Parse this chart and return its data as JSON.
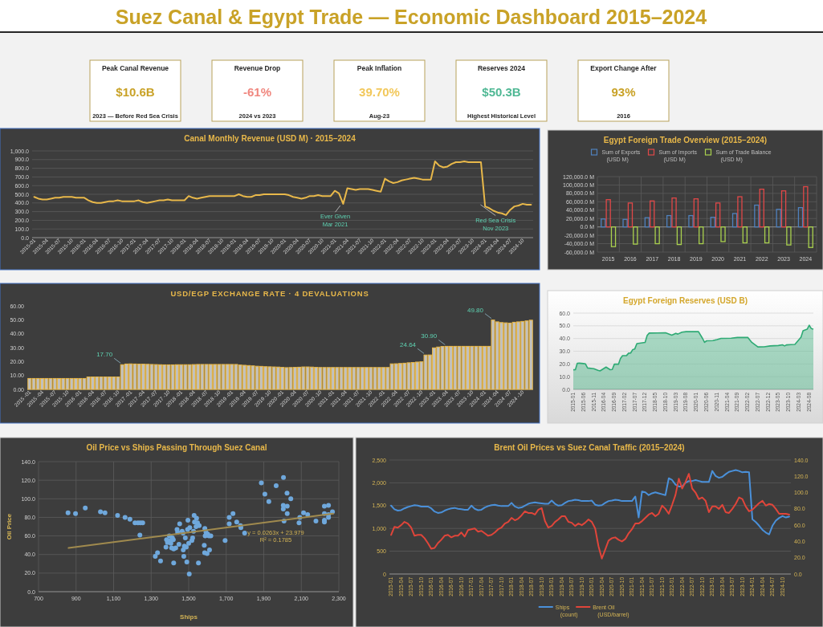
{
  "chart_data": [
    {
      "type": "other",
      "title": "Suez Canal & Egypt Trade — Economic Dashboard 2015–2024",
      "annotations": [
        "Peak Canal Revenue",
        "$10.6B",
        "2023 — Before Red Sea Crisis",
        "Revenue Drop",
        "-61%",
        "2024 vs 2023",
        "Peak Inflation",
        "39.70%",
        "Aug-23",
        "Reserves 2024",
        "$50.3B",
        "Highest Historical Level",
        "Export Change After",
        "93%",
        "2016"
      ],
      "colors": [
        "#c9a227",
        "#f0877f",
        "#f2c85b",
        "#4fb894",
        "#c9a227"
      ]
    },
    {
      "type": "line",
      "title": "Canal Monthly Revenue (USD M) · 2015–2024",
      "categories": [
        "2015-01",
        null,
        null,
        "2015-04",
        null,
        null,
        "2015-07",
        null,
        null,
        "2015-10",
        null,
        null,
        "2016-01",
        null,
        null,
        "2016-04",
        null,
        null,
        "2016-07",
        null,
        null,
        "2016-10",
        null,
        null,
        "2017-01",
        null,
        null,
        "2017-04",
        null,
        null,
        "2017-07",
        null,
        null,
        "2017-10",
        null,
        null,
        "2018-01",
        null,
        null,
        "2018-04",
        null,
        null,
        "2018-07",
        null,
        null,
        "2018-10",
        null,
        null,
        "2019-01",
        null,
        null,
        "2019-04",
        null,
        null,
        "2019-07",
        null,
        null,
        "2019-10",
        null,
        null,
        "2020-01",
        null,
        null,
        "2020-04",
        null,
        null,
        "2020-07",
        null,
        null,
        "2020-10",
        null,
        null,
        "2021-01",
        null,
        null,
        "2021-04",
        null,
        null,
        "2021-07",
        null,
        null,
        "2021-10",
        null,
        null,
        "2022-01",
        null,
        null,
        "2022-04",
        null,
        null,
        "2022-07",
        null,
        null,
        "2022-10",
        null,
        null,
        "2023-01",
        null,
        null,
        "2023-04",
        null,
        null,
        "2023-07",
        null,
        null,
        "2023-10",
        null,
        null,
        "2024-01",
        null,
        null,
        "2024-04",
        null,
        null,
        "2024-07",
        null,
        null,
        "2024-10",
        null,
        null
      ],
      "series": [
        {
          "color": "#e8b84a",
          "values": [
            470,
            450,
            440,
            440,
            450,
            460,
            460,
            470,
            470,
            470,
            460,
            460,
            460,
            430,
            410,
            400,
            400,
            410,
            420,
            420,
            430,
            420,
            420,
            420,
            420,
            430,
            410,
            400,
            410,
            420,
            430,
            430,
            440,
            430,
            430,
            430,
            430,
            480,
            460,
            450,
            460,
            470,
            480,
            480,
            480,
            480,
            480,
            480,
            480,
            500,
            480,
            470,
            470,
            490,
            490,
            500,
            500,
            500,
            500,
            500,
            500,
            490,
            470,
            460,
            450,
            460,
            480,
            480,
            490,
            480,
            480,
            480,
            540,
            510,
            390,
            570,
            560,
            550,
            560,
            560,
            560,
            550,
            540,
            530,
            680,
            650,
            630,
            640,
            660,
            670,
            680,
            690,
            680,
            670,
            670,
            670,
            880,
            830,
            810,
            820,
            850,
            870,
            870,
            880,
            870,
            870,
            870,
            870,
            360,
            340,
            310,
            290,
            280,
            260,
            320,
            360,
            370,
            390,
            380,
            380
          ]
        }
      ],
      "ylim": [
        0,
        1000
      ],
      "yticks": [
        {
          "value": 0,
          "label": "0.0"
        },
        {
          "value": 100,
          "label": "100.0"
        },
        {
          "value": 200,
          "label": "200.0"
        },
        {
          "value": 300,
          "label": "300.0"
        },
        {
          "value": 400,
          "label": "400.0"
        },
        {
          "value": 500,
          "label": "500.0"
        },
        {
          "value": 600,
          "label": "600.0"
        },
        {
          "value": 700,
          "label": "700.0"
        },
        {
          "value": 800,
          "label": "800.0"
        },
        {
          "value": 900,
          "label": "900.0"
        },
        {
          "value": 1000,
          "label": "1,000.0"
        }
      ],
      "grid": "y",
      "annotations": [
        "Ever Given\nMar 2021",
        "Red Sea Crisis\nNov 2023"
      ]
    },
    {
      "type": "bar",
      "title": "Egypt Foreign Trade Overview (2015–2024)",
      "categories": [
        "2015",
        "2016",
        "2017",
        "2018",
        "2019",
        "2020",
        "2021",
        "2022",
        "2023",
        "2024"
      ],
      "series": [
        {
          "name": "Sum of Exports (USD M)",
          "color": "#4f81bd",
          "values": [
            19000,
            18000,
            22000,
            27000,
            27000,
            23000,
            32000,
            52000,
            42000,
            46000
          ]
        },
        {
          "name": "Sum of Imports (USD M)",
          "color": "#e04848",
          "values": [
            65000,
            57000,
            62000,
            69000,
            67000,
            57000,
            72000,
            90000,
            86000,
            96000
          ]
        },
        {
          "name": "Sum of Trade Balance (USD M)",
          "color": "#a9d04e",
          "values": [
            -47000,
            -41000,
            -40000,
            -42000,
            -40000,
            -35000,
            -38000,
            -38000,
            -43000,
            -49000
          ]
        }
      ],
      "ylim": [
        -60000,
        120000
      ],
      "yticks": [
        {
          "value": -60000,
          "label": "-60,000.0 M"
        },
        {
          "value": -40000,
          "label": "-40,000.0 M"
        },
        {
          "value": -20000,
          "label": "-20,000.0 M"
        },
        {
          "value": 0,
          "label": "0.0 M"
        },
        {
          "value": 20000,
          "label": "20,000.0 M"
        },
        {
          "value": 40000,
          "label": "40,000.0 M"
        },
        {
          "value": 60000,
          "label": "60,000.0 M"
        },
        {
          "value": 80000,
          "label": "80,000.0 M"
        },
        {
          "value": 100000,
          "label": "100,000.0 M"
        },
        {
          "value": 120000,
          "label": "120,000.0 M"
        }
      ],
      "grid": true,
      "legend": "top"
    },
    {
      "type": "bar",
      "title": "USD/EGP EXCHANGE RATE · 4 DEVALUATIONS",
      "categories": [
        "2015 -01",
        null,
        null,
        "2015 -04",
        null,
        null,
        "2015 -07",
        null,
        null,
        "2015 -10",
        null,
        null,
        "2016 -01",
        null,
        null,
        "2016 -04",
        null,
        null,
        "2016 -07",
        null,
        null,
        "2016 -10",
        null,
        null,
        "2017 -01",
        null,
        null,
        "2017 -04",
        null,
        null,
        "2017 -07",
        null,
        null,
        "2017 -10",
        null,
        null,
        "2018 -01",
        null,
        null,
        "2018 -04",
        null,
        null,
        "2018 -07",
        null,
        null,
        "2018 -10",
        null,
        null,
        "2019 -01",
        null,
        null,
        "2019 -04",
        null,
        null,
        "2019 -07",
        null,
        null,
        "2019 -10",
        null,
        null,
        "2020 -01",
        null,
        null,
        "2020 -04",
        null,
        null,
        "2020 -07",
        null,
        null,
        "2020 -10",
        null,
        null,
        "2021 -01",
        null,
        null,
        "2021 -04",
        null,
        null,
        "2021 -07",
        null,
        null,
        "2021 -10",
        null,
        null,
        "2022 -01",
        null,
        null,
        "2022 -04",
        null,
        null,
        "2022 -07",
        null,
        null,
        "2022 -10",
        null,
        null,
        "2023 -01",
        null,
        null,
        "2023 -04",
        null,
        null,
        "2023 -07",
        null,
        null,
        "2023 -10",
        null,
        null,
        "2024 -01",
        null,
        null,
        "2024 -04",
        null,
        null,
        "2024 -07",
        null,
        null,
        "2024 -10",
        null,
        null
      ],
      "series": [
        {
          "color": "#e8b84a",
          "values": [
            7.8,
            7.8,
            7.8,
            7.8,
            7.8,
            7.8,
            7.8,
            7.8,
            7.8,
            7.8,
            7.8,
            7.8,
            7.8,
            7.8,
            8.9,
            8.9,
            8.9,
            8.9,
            8.9,
            8.9,
            8.9,
            8.9,
            17.7,
            18.2,
            18.3,
            18.2,
            18.1,
            18.1,
            18.0,
            17.9,
            17.8,
            17.7,
            17.6,
            17.6,
            17.6,
            17.7,
            17.7,
            17.7,
            17.7,
            17.8,
            17.9,
            17.9,
            17.9,
            17.9,
            17.9,
            17.9,
            17.9,
            17.9,
            17.9,
            17.9,
            17.5,
            17.3,
            17.1,
            16.9,
            16.6,
            16.5,
            16.3,
            16.2,
            16.1,
            16.0,
            15.8,
            15.6,
            15.7,
            15.8,
            15.9,
            16.1,
            16.1,
            16.0,
            15.8,
            15.7,
            15.7,
            15.7,
            15.7,
            15.7,
            15.7,
            15.7,
            15.7,
            15.7,
            15.7,
            15.7,
            15.7,
            15.7,
            15.7,
            15.7,
            15.7,
            15.7,
            18.3,
            18.4,
            18.6,
            18.8,
            19.1,
            19.3,
            19.6,
            19.8,
            24.64,
            24.7,
            29.8,
            30.4,
            30.8,
            30.9,
            30.9,
            30.9,
            30.9,
            30.9,
            30.9,
            30.9,
            30.9,
            30.9,
            30.9,
            30.9,
            49.8,
            48.5,
            48.0,
            47.8,
            47.6,
            48.2,
            48.5,
            48.8,
            49.2,
            49.7
          ],
          "value_labels": [
            null,
            null,
            null,
            null,
            null,
            null,
            null,
            null,
            null,
            null,
            null,
            null,
            null,
            null,
            null,
            null,
            null,
            null,
            null,
            null,
            null,
            null,
            "17.70",
            null,
            null,
            null,
            null,
            null,
            null,
            null,
            null,
            null,
            null,
            null,
            null,
            null,
            null,
            null,
            null,
            null,
            null,
            null,
            null,
            null,
            null,
            null,
            null,
            null,
            null,
            null,
            null,
            null,
            null,
            null,
            null,
            null,
            null,
            null,
            null,
            null,
            null,
            null,
            null,
            null,
            null,
            null,
            null,
            null,
            null,
            null,
            null,
            null,
            null,
            null,
            null,
            null,
            null,
            null,
            null,
            null,
            null,
            null,
            null,
            null,
            null,
            null,
            null,
            null,
            null,
            null,
            null,
            null,
            null,
            null,
            "24.64",
            null,
            null,
            null,
            null,
            "30.90",
            null,
            null,
            null,
            null,
            null,
            null,
            null,
            null,
            null,
            null,
            "49.80",
            null,
            null,
            null,
            null,
            null,
            null,
            null,
            null,
            null
          ]
        }
      ],
      "ylim": [
        0,
        60
      ],
      "yticks": [
        {
          "value": 0,
          "label": "0.00"
        },
        {
          "value": 10,
          "label": "10.00"
        },
        {
          "value": 20,
          "label": "20.00"
        },
        {
          "value": 30,
          "label": "30.00"
        },
        {
          "value": 40,
          "label": "40.00"
        },
        {
          "value": 50,
          "label": "50.00"
        },
        {
          "value": 60,
          "label": "60.00"
        }
      ]
    },
    {
      "type": "area",
      "title": "Egypt Foreign Reserves (USD B)",
      "x": [
        "2015-01",
        "2015-02",
        "2015-03",
        "2015-04",
        "2015-06",
        "2015-07",
        "2015-08",
        "2015-11",
        "2016-01",
        "2016-02",
        "2016-03",
        "2016-05",
        "2016-07",
        "2016-08",
        "2016-09",
        "2016-11",
        "2016-12",
        "2017-01",
        "2017-03",
        "2017-04",
        "2017-05",
        "2017-06",
        "2017-07",
        "2017-08",
        "2017-10",
        "2017-12",
        "2018-01",
        "2018-02",
        "2018-06",
        "2018-10",
        "2019-01",
        "2019-03",
        "2019-04",
        "2019-06",
        "2019-08",
        "2020-02",
        "2020-04",
        "2020-05",
        "2020-06",
        "2020-09",
        "2020-11",
        "2021-01",
        "2021-06",
        "2021-09",
        "2022-02",
        "2022-04",
        "2022-07",
        "2022-10",
        "2023-01",
        "2023-05",
        "2023-07",
        "2023-08",
        "2023-09",
        "2023-11",
        "2024-01",
        "2024-04",
        "2024-05",
        "2024-06",
        "2024-07",
        "2024-08",
        "2024-09",
        "2024-10"
      ],
      "series": [
        {
          "color": "#2eaa74",
          "values": [
            15.4,
            15.5,
            20.5,
            20.6,
            20.3,
            20.0,
            16.8,
            16.3,
            15.0,
            14.5,
            15.5,
            17.5,
            15.5,
            15.6,
            19.8,
            19.8,
            24.3,
            26.5,
            26.6,
            28.5,
            28.6,
            31.3,
            31.8,
            36.0,
            36.5,
            37.0,
            42.5,
            44.3,
            44.4,
            44.5,
            42.6,
            44.1,
            43.5,
            45.0,
            45.4,
            45.4,
            40.1,
            37.0,
            38.2,
            38.4,
            39.2,
            40.1,
            40.3,
            40.8,
            40.9,
            37.0,
            33.4,
            33.5,
            34.2,
            34.5,
            35.0,
            34.2,
            35.0,
            35.2,
            35.4,
            41.1,
            46.1,
            46.8,
            47.3,
            50.5,
            47.8,
            47.4
          ]
        }
      ],
      "xlim": [
        "2015-01",
        "2024-10"
      ],
      "xticks": [
        "2015-01",
        "2015-06",
        "2015-11",
        "2016-04",
        "2016-09",
        "2017-02",
        "2017-07",
        "2017-12",
        "2018-05",
        "2018-10",
        "2019-03",
        "2019-08",
        "2020-01",
        "2020-06",
        "2020-11",
        "2021-04",
        "2021-09",
        "2022-02",
        "2022-07",
        "2022-12",
        "2023-05",
        "2023-10",
        "2024-03",
        "2024-08"
      ],
      "ylim": [
        0,
        60
      ],
      "yticks": [
        {
          "value": 0,
          "label": "0.0"
        },
        {
          "value": 10,
          "label": "10.0"
        },
        {
          "value": 20,
          "label": "20.0"
        },
        {
          "value": 30,
          "label": "30.0"
        },
        {
          "value": 40,
          "label": "40.0"
        },
        {
          "value": 50,
          "label": "50.0"
        },
        {
          "value": 60,
          "label": "60.0"
        }
      ],
      "grid": "y"
    },
    {
      "type": "scatter",
      "title": "Oil Price vs Ships Passing Through Suez Canal",
      "xlabel": "Ships",
      "ylabel": "Oil Price",
      "series": [
        {
          "type": "scatter",
          "marker": "circle",
          "color": "#6fa8dc",
          "x": [
            857,
            897,
            949,
            1030,
            1054,
            1121,
            1161,
            1187,
            1214,
            1230,
            1243,
            1255,
            1240,
            1322,
            1334,
            1350,
            1379,
            1382,
            1387,
            1397,
            1402,
            1405,
            1409,
            1413,
            1418,
            1420,
            1420,
            1431,
            1438,
            1441,
            1448,
            1452,
            1465,
            1470,
            1471,
            1474,
            1477,
            1482,
            1487,
            1490,
            1494,
            1496,
            1500,
            1503,
            1506,
            1517,
            1521,
            1526,
            1529,
            1531,
            1539,
            1542,
            1547,
            1552,
            1556,
            1583,
            1585,
            1586,
            1588,
            1592,
            1598,
            1601,
            1608,
            1611,
            1618,
            1694,
            1716,
            1716,
            1736,
            1756,
            1776,
            1778,
            1798,
            1887,
            1906,
            1927,
            1966,
            2005,
            2004,
            2004,
            2008,
            2024,
            2025,
            2025,
            2044,
            2088,
            2092,
            2112,
            2134,
            2178,
            2223,
            2223,
            2223,
            2223,
            2245,
            2245,
            2245,
            2266
          ],
          "values": [
            85,
            84,
            90,
            86,
            85,
            82,
            80,
            78,
            74,
            74,
            74,
            74,
            61,
            38,
            42,
            33,
            48,
            56,
            53,
            60,
            55,
            52,
            47,
            58,
            56,
            46,
            31,
            47,
            67,
            64,
            51,
            73,
            65,
            63,
            45,
            38,
            49,
            58,
            48,
            32,
            67,
            77,
            52,
            19,
            69,
            55,
            58,
            65,
            82,
            75,
            70,
            79,
            74,
            31,
            71,
            50,
            42,
            68,
            60,
            64,
            41,
            62,
            60,
            45,
            60,
            55,
            80,
            73,
            84,
            75,
            71,
            69,
            63,
            117,
            105,
            97,
            114,
            123,
            93,
            89,
            76,
            106,
            92,
            84,
            100,
            74,
            80,
            85,
            83,
            76,
            92,
            84,
            77,
            75,
            93,
            83,
            80,
            86
          ]
        },
        {
          "type": "line",
          "color": "#a08a4e",
          "x": [
            860,
            2270
          ],
          "values": [
            47,
            84
          ]
        }
      ],
      "xlim": [
        700,
        2300
      ],
      "xticks": [
        700,
        900,
        {
          "value": 1100,
          "label": "1,100"
        },
        {
          "value": 1300,
          "label": "1,300"
        },
        {
          "value": 1500,
          "label": "1,500"
        },
        {
          "value": 1700,
          "label": "1,700"
        },
        {
          "value": 1900,
          "label": "1,900"
        },
        {
          "value": 2100,
          "label": "2,100"
        },
        {
          "value": 2300,
          "label": "2,300"
        }
      ],
      "ylim": [
        0,
        140
      ],
      "yticks": [
        {
          "value": 0,
          "label": "0.0"
        },
        {
          "value": 20,
          "label": "20.0"
        },
        {
          "value": 40,
          "label": "40.0"
        },
        {
          "value": 60,
          "label": "60.0"
        },
        {
          "value": 80,
          "label": "80.0"
        },
        {
          "value": 100,
          "label": "100.0"
        },
        {
          "value": 120,
          "label": "120.0"
        },
        {
          "value": 140,
          "label": "140.0"
        }
      ],
      "grid": true,
      "annotations": [
        "y = 0.0263x + 23.979",
        "R² = 0.1785"
      ]
    },
    {
      "type": "line",
      "title": "Brent Oil Prices vs Suez Canal Traffic (2015–2024)",
      "categories": [
        "2015-01",
        null,
        null,
        "2015-04",
        null,
        null,
        "2015-07",
        null,
        null,
        "2015-10",
        null,
        null,
        "2016-01",
        null,
        null,
        "2016-04",
        null,
        null,
        "2016-07",
        null,
        null,
        "2016-10",
        null,
        null,
        "2017-01",
        null,
        null,
        "2017-04",
        null,
        null,
        "2017-07",
        null,
        null,
        "2017-10",
        null,
        null,
        "2018-01",
        null,
        null,
        "2018-04",
        null,
        null,
        "2018-07",
        null,
        null,
        "2018-10",
        null,
        null,
        "2019-01",
        null,
        null,
        "2019-04",
        null,
        null,
        "2019-07",
        null,
        null,
        "2019-10",
        null,
        null,
        "2020-01",
        null,
        null,
        "2020-04",
        null,
        null,
        "2020-07",
        null,
        null,
        "2020-10",
        null,
        null,
        "2021-01",
        null,
        null,
        "2021-04",
        null,
        null,
        "2021-07",
        null,
        null,
        "2021-10",
        null,
        null,
        "2022-01",
        null,
        null,
        "2022-04",
        null,
        null,
        "2022-07",
        null,
        null,
        "2022-10",
        null,
        null,
        "2023-01",
        null,
        null,
        "2023-04",
        null,
        null,
        "2023-07",
        null,
        null,
        "2023-10",
        null,
        null,
        "2024-01",
        null,
        null,
        "2024-04",
        null,
        null,
        "2024-07",
        null,
        null,
        "2024-10",
        null,
        null
      ],
      "series": [
        {
          "name": "Ships (count)",
          "color": "#4a90d9",
          "values": [
            1500,
            1420,
            1390,
            1400,
            1440,
            1470,
            1490,
            1510,
            1500,
            1480,
            1480,
            1480,
            1440,
            1370,
            1340,
            1350,
            1390,
            1420,
            1440,
            1450,
            1430,
            1420,
            1410,
            1410,
            1500,
            1430,
            1400,
            1410,
            1460,
            1490,
            1510,
            1520,
            1500,
            1490,
            1490,
            1490,
            1560,
            1480,
            1450,
            1460,
            1500,
            1540,
            1560,
            1570,
            1560,
            1550,
            1540,
            1540,
            1610,
            1540,
            1500,
            1510,
            1560,
            1600,
            1610,
            1630,
            1620,
            1600,
            1600,
            1600,
            1610,
            1520,
            1500,
            1510,
            1560,
            1600,
            1610,
            1630,
            1620,
            1600,
            1600,
            1600,
            1600,
            1700,
            1240,
            1810,
            1790,
            1730,
            1770,
            1790,
            1770,
            1750,
            1730,
            2100,
            2060,
            1960,
            1920,
            1920,
            2000,
            2040,
            2040,
            2060,
            2040,
            2020,
            2020,
            2020,
            2260,
            2150,
            2110,
            2130,
            2190,
            2240,
            2260,
            2280,
            2260,
            2230,
            2240,
            2230,
            1200,
            1140,
            1060,
            970,
            910,
            870,
            1060,
            1170,
            1230,
            1270,
            1240,
            1260
          ]
        },
        {
          "name": "Brent Oil (USD/barrel)",
          "color": "#e0453a",
          "axis": "y2",
          "values": [
            48,
            58,
            57,
            60,
            64,
            62,
            57,
            47,
            48,
            48,
            44,
            38,
            31,
            32,
            38,
            42,
            47,
            48,
            45,
            47,
            47,
            51,
            46,
            54,
            55,
            56,
            52,
            53,
            50,
            47,
            48,
            51,
            55,
            57,
            62,
            64,
            69,
            66,
            68,
            72,
            77,
            75,
            75,
            73,
            79,
            81,
            65,
            57,
            59,
            64,
            67,
            71,
            71,
            64,
            63,
            59,
            62,
            60,
            63,
            67,
            64,
            56,
            34,
            19,
            30,
            41,
            44,
            45,
            42,
            40,
            43,
            50,
            55,
            62,
            62,
            65,
            69,
            73,
            75,
            71,
            74,
            84,
            80,
            74,
            85,
            97,
            117,
            105,
            113,
            123,
            105,
            100,
            92,
            94,
            90,
            76,
            83,
            83,
            80,
            85,
            76,
            75,
            80,
            86,
            94,
            92,
            83,
            77,
            79,
            83,
            87,
            90,
            84,
            86,
            85,
            80,
            74,
            74,
            74,
            73
          ]
        }
      ],
      "ylim": [
        0,
        2500
      ],
      "yticks": [
        0,
        500,
        {
          "value": 1000,
          "label": "1,000"
        },
        {
          "value": 1500,
          "label": "1,500"
        },
        {
          "value": 2000,
          "label": "2,000"
        },
        {
          "value": 2500,
          "label": "2,500"
        }
      ],
      "y2lim": [
        0,
        140
      ],
      "y2ticks": [
        {
          "value": 0,
          "label": "0.0"
        },
        {
          "value": 20,
          "label": "20.0"
        },
        {
          "value": 40,
          "label": "40.0"
        },
        {
          "value": 60,
          "label": "60.0"
        },
        {
          "value": 80,
          "label": "80.0"
        },
        {
          "value": 100,
          "label": "100.0"
        },
        {
          "value": 120,
          "label": "120.0"
        },
        {
          "value": 140,
          "label": "140.0"
        }
      ],
      "grid": "y",
      "legend": "bottom"
    }
  ]
}
